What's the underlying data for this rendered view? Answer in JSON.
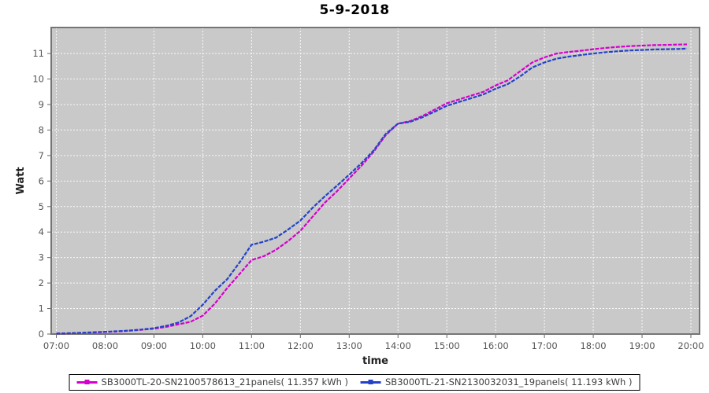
{
  "header": {
    "title": "5-9-2018"
  },
  "axes": {
    "x_label": "time",
    "y_label": "Watt",
    "x_ticks": [
      "07:00",
      "08:00",
      "09:00",
      "10:00",
      "11:00",
      "12:00",
      "13:00",
      "14:00",
      "15:00",
      "16:00",
      "17:00",
      "18:00",
      "19:00",
      "20:00"
    ],
    "y_ticks": [
      "0",
      "1",
      "2",
      "3",
      "4",
      "5",
      "6",
      "7",
      "8",
      "9",
      "10",
      "11"
    ]
  },
  "legend": {
    "entries": [
      {
        "label": "SB3000TL-20-SN2100578613_21panels( 11.357 kWh )",
        "color": "#d400cc"
      },
      {
        "label": "SB3000TL-21-SN2130032031_19panels( 11.193 kWh )",
        "color": "#2442c8"
      }
    ]
  },
  "colors": {
    "plot_bg": "#c9c9c9",
    "grid": "#ffffff",
    "plot_border": "#757575",
    "tick_text": "#555555",
    "axis_title_text": "#222222",
    "title_text": "#000000",
    "series_magenta": "#d400cc",
    "series_blue": "#2442c8"
  },
  "chart_data": {
    "type": "line",
    "title": "5-9-2018",
    "xlabel": "time",
    "ylabel": "Watt",
    "xlim": [
      7,
      20
    ],
    "ylim": [
      0,
      12.02
    ],
    "grid": true,
    "legend_position": "bottom",
    "x_tick_hours": [
      7,
      8,
      9,
      10,
      11,
      12,
      13,
      14,
      15,
      16,
      17,
      18,
      19,
      20
    ],
    "x_hours": [
      7.0,
      7.25,
      7.5,
      7.75,
      8.0,
      8.25,
      8.5,
      8.75,
      9.0,
      9.25,
      9.5,
      9.75,
      10.0,
      10.25,
      10.5,
      10.75,
      11.0,
      11.25,
      11.5,
      11.75,
      12.0,
      12.25,
      12.5,
      12.75,
      13.0,
      13.25,
      13.5,
      13.75,
      14.0,
      14.25,
      14.5,
      14.75,
      15.0,
      15.25,
      15.5,
      15.75,
      16.0,
      16.25,
      16.5,
      16.75,
      17.0,
      17.25,
      17.5,
      17.75,
      18.0,
      18.25,
      18.5,
      18.75,
      19.0,
      19.25,
      19.5,
      19.75,
      19.92
    ],
    "series": [
      {
        "name": "SB3000TL-20-SN2100578613_21panels( 11.357 kWh )",
        "color": "#d400cc",
        "total_kwh": 11.357,
        "values": [
          0.02,
          0.03,
          0.04,
          0.06,
          0.08,
          0.1,
          0.13,
          0.17,
          0.21,
          0.28,
          0.38,
          0.48,
          0.72,
          1.2,
          1.8,
          2.35,
          2.9,
          3.05,
          3.3,
          3.65,
          4.05,
          4.6,
          5.15,
          5.6,
          6.1,
          6.6,
          7.15,
          7.8,
          8.25,
          8.35,
          8.55,
          8.8,
          9.05,
          9.2,
          9.35,
          9.5,
          9.75,
          9.95,
          10.3,
          10.65,
          10.85,
          11.0,
          11.06,
          11.11,
          11.17,
          11.22,
          11.26,
          11.29,
          11.31,
          11.33,
          11.34,
          11.35,
          11.357
        ]
      },
      {
        "name": "SB3000TL-21-SN2130032031_19panels( 11.193 kWh )",
        "color": "#2442c8",
        "total_kwh": 11.193,
        "values": [
          0.02,
          0.03,
          0.05,
          0.07,
          0.09,
          0.11,
          0.14,
          0.18,
          0.23,
          0.32,
          0.45,
          0.7,
          1.15,
          1.7,
          2.15,
          2.8,
          3.5,
          3.62,
          3.78,
          4.1,
          4.45,
          4.95,
          5.4,
          5.82,
          6.25,
          6.7,
          7.2,
          7.85,
          8.25,
          8.32,
          8.5,
          8.72,
          8.95,
          9.1,
          9.25,
          9.4,
          9.62,
          9.8,
          10.1,
          10.45,
          10.65,
          10.8,
          10.88,
          10.94,
          11.0,
          11.05,
          11.09,
          11.12,
          11.14,
          11.16,
          11.17,
          11.18,
          11.193
        ]
      }
    ]
  }
}
